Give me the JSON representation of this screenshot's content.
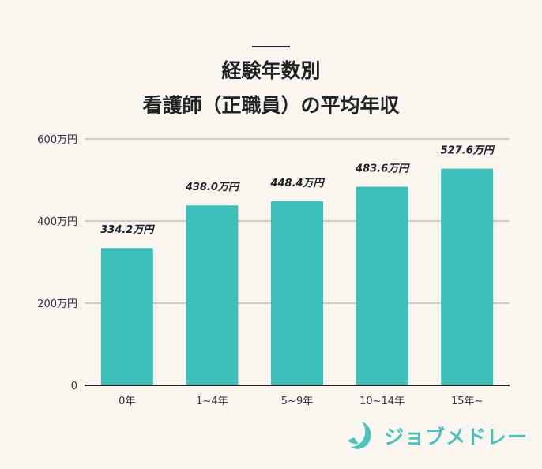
{
  "chart_data": {
    "type": "bar",
    "title_lines": [
      "経験年数別",
      "看護師（正職員）の平均年収"
    ],
    "categories": [
      "0年",
      "1~4年",
      "5~9年",
      "10~14年",
      "15年~"
    ],
    "values": [
      334.2,
      438.0,
      448.4,
      483.6,
      527.6
    ],
    "data_labels": [
      "334.2万円",
      "438.0万円",
      "448.4万円",
      "483.6万円",
      "527.6万円"
    ],
    "ylim": [
      0,
      600
    ],
    "yticks": [
      0,
      200,
      400,
      600
    ],
    "ytick_labels": [
      "0",
      "200万円",
      "400万円",
      "600万円"
    ],
    "grid": true,
    "bar_color": "#3bbfb8",
    "grid_color": "#cfcbc4",
    "axis_color": "#222222"
  },
  "logo": {
    "text": "ジョブメドレー",
    "color": "#4cc3bb"
  }
}
